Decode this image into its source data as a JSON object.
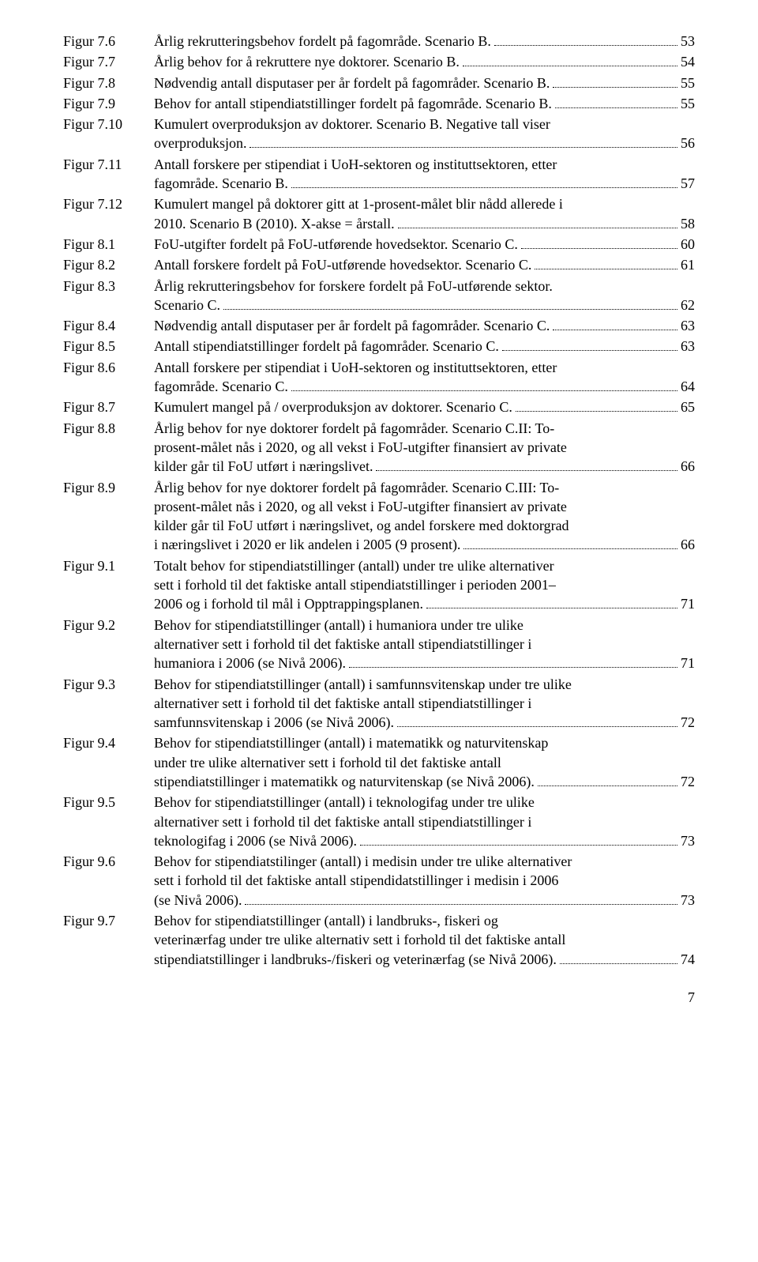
{
  "entries": [
    {
      "label": "Figur 7.6",
      "lines": [
        "Årlig rekrutteringsbehov fordelt på fagområde. Scenario B."
      ],
      "page": "53"
    },
    {
      "label": "Figur 7.7",
      "lines": [
        "Årlig behov for å rekruttere nye doktorer. Scenario B."
      ],
      "page": "54"
    },
    {
      "label": "Figur 7.8",
      "lines": [
        "Nødvendig antall disputaser per år fordelt på fagområder. Scenario B."
      ],
      "page": "55"
    },
    {
      "label": "Figur 7.9",
      "lines": [
        "Behov for antall stipendiatstillinger fordelt på fagområde. Scenario B."
      ],
      "page": "55"
    },
    {
      "label": "Figur 7.10",
      "lines": [
        "Kumulert overproduksjon av doktorer. Scenario B. Negative tall viser",
        "overproduksjon. "
      ],
      "page": "56"
    },
    {
      "label": "Figur 7.11",
      "lines": [
        "Antall forskere per stipendiat i UoH-sektoren og instituttsektoren, etter",
        "fagområde. Scenario B."
      ],
      "page": "57"
    },
    {
      "label": "Figur 7.12",
      "lines": [
        "Kumulert mangel på doktorer gitt at 1-prosent-målet blir nådd allerede i",
        "2010. Scenario B (2010). X-akse = årstall."
      ],
      "page": "58"
    },
    {
      "label": "Figur 8.1",
      "lines": [
        "FoU-utgifter fordelt på FoU-utførende hovedsektor. Scenario C."
      ],
      "page": "60"
    },
    {
      "label": "Figur 8.2",
      "lines": [
        "Antall forskere fordelt på FoU-utførende hovedsektor. Scenario C."
      ],
      "page": "61"
    },
    {
      "label": "Figur 8.3",
      "lines": [
        "Årlig rekrutteringsbehov for forskere fordelt på FoU-utførende sektor.",
        "Scenario C."
      ],
      "page": "62"
    },
    {
      "label": "Figur 8.4",
      "lines": [
        "Nødvendig antall disputaser per år fordelt på fagområder. Scenario C."
      ],
      "page": "63"
    },
    {
      "label": "Figur 8.5",
      "lines": [
        "Antall stipendiatstillinger fordelt på fagområder. Scenario C."
      ],
      "page": "63"
    },
    {
      "label": "Figur 8.6",
      "lines": [
        "Antall forskere per stipendiat i UoH-sektoren og instituttsektoren, etter",
        "fagområde. Scenario C."
      ],
      "page": "64"
    },
    {
      "label": "Figur 8.7",
      "lines": [
        "Kumulert mangel på / overproduksjon av doktorer. Scenario C. "
      ],
      "page": "65"
    },
    {
      "label": "Figur 8.8",
      "lines": [
        "Årlig behov for nye doktorer fordelt på fagområder. Scenario C.II: To-",
        "prosent-målet nås i 2020, og all vekst i FoU-utgifter finansiert av private",
        "kilder går til FoU utført i næringslivet."
      ],
      "page": "66"
    },
    {
      "label": "Figur 8.9",
      "lines": [
        "Årlig behov for nye doktorer fordelt på fagområder. Scenario C.III: To-",
        "prosent-målet nås i 2020, og all vekst i FoU-utgifter finansiert av private",
        "kilder går til FoU utført i næringslivet, og andel forskere med doktorgrad",
        "i næringslivet i 2020 er lik andelen i 2005 (9 prosent)."
      ],
      "page": "66"
    },
    {
      "label": "Figur 9.1",
      "lines": [
        "Totalt behov for stipendiatstillinger (antall) under tre ulike alternativer",
        "sett i forhold til det faktiske antall stipendiatstillinger i perioden 2001–",
        "2006 og i forhold til mål i Opptrappingsplanen."
      ],
      "page": "71"
    },
    {
      "label": "Figur 9.2",
      "lines": [
        "Behov for stipendiatstillinger (antall) i humaniora under tre ulike",
        "alternativer sett i forhold til det faktiske antall stipendiatstillinger i",
        "humaniora i 2006 (se Nivå 2006)."
      ],
      "page": "71"
    },
    {
      "label": "Figur 9.3",
      "lines": [
        "Behov for stipendiatstillinger (antall) i samfunnsvitenskap under tre ulike",
        "alternativer sett i forhold til det faktiske antall stipendiatstillinger i",
        "samfunnsvitenskap i 2006 (se Nivå 2006)."
      ],
      "page": "72"
    },
    {
      "label": "Figur 9.4",
      "lines": [
        "Behov for stipendiatstillinger (antall) i matematikk og naturvitenskap",
        "under tre ulike alternativer sett i forhold til det faktiske antall",
        "stipendiatstillinger i matematikk og naturvitenskap (se Nivå 2006)."
      ],
      "page": "72"
    },
    {
      "label": "Figur 9.5",
      "lines": [
        "Behov for stipendiatstillinger (antall) i teknologifag under tre ulike",
        "alternativer sett i forhold til det faktiske antall stipendiatstillinger i",
        "teknologifag i 2006 (se Nivå 2006)."
      ],
      "page": "73"
    },
    {
      "label": "Figur 9.6",
      "lines": [
        "Behov for stipendiatstilinger (antall) i medisin under tre ulike alternativer",
        "sett i forhold til det faktiske antall stipendidatstillinger i medisin i 2006",
        "(se Nivå 2006)."
      ],
      "page": "73"
    },
    {
      "label": "Figur 9.7",
      "lines": [
        "Behov for stipendiatstillinger (antall) i landbruks-, fiskeri og",
        "veterinærfag under tre ulike alternativ sett i forhold til det faktiske antall",
        "stipendiatstillinger i landbruks-/fiskeri og veterinærfag (se Nivå 2006)."
      ],
      "page": "74"
    }
  ],
  "pageNumber": "7"
}
